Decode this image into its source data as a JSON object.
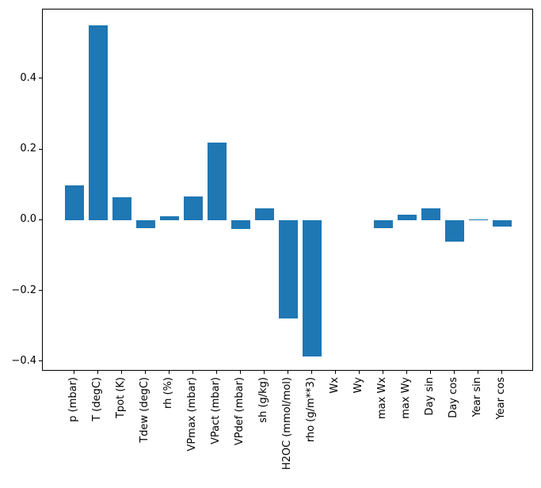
{
  "figure": {
    "background": "#ffffff",
    "spine_color": "#000000",
    "title": ""
  },
  "chart_data": {
    "type": "bar",
    "title": "",
    "xlabel": "",
    "ylabel": "",
    "grid": false,
    "legend": null,
    "bar_color": "#1f77b4",
    "categories": [
      "p (mbar)",
      "T (degC)",
      "Tpot (K)",
      "Tdew (degC)",
      "rh (%)",
      "VPmax (mbar)",
      "VPact (mbar)",
      "VPdef (mbar)",
      "sh (g/kg)",
      "H2OC (mmol/mol)",
      "rho (g/m**3)",
      "Wx",
      "Wy",
      "max Wx",
      "max Wy",
      "Day sin",
      "Day cos",
      "Year sin",
      "Year cos"
    ],
    "values": [
      0.1,
      0.552,
      0.065,
      -0.021,
      0.013,
      0.068,
      0.22,
      -0.024,
      0.034,
      -0.278,
      -0.385,
      0.0,
      0.0,
      -0.021,
      0.017,
      0.035,
      -0.06,
      0.003,
      -0.016
    ],
    "ylim": [
      -0.427,
      0.597
    ],
    "yticks": [
      -0.4,
      -0.2,
      0.0,
      0.2,
      0.4
    ],
    "ytick_labels": [
      "−0.4",
      "−0.2",
      "0.0",
      "0.2",
      "0.4"
    ]
  }
}
